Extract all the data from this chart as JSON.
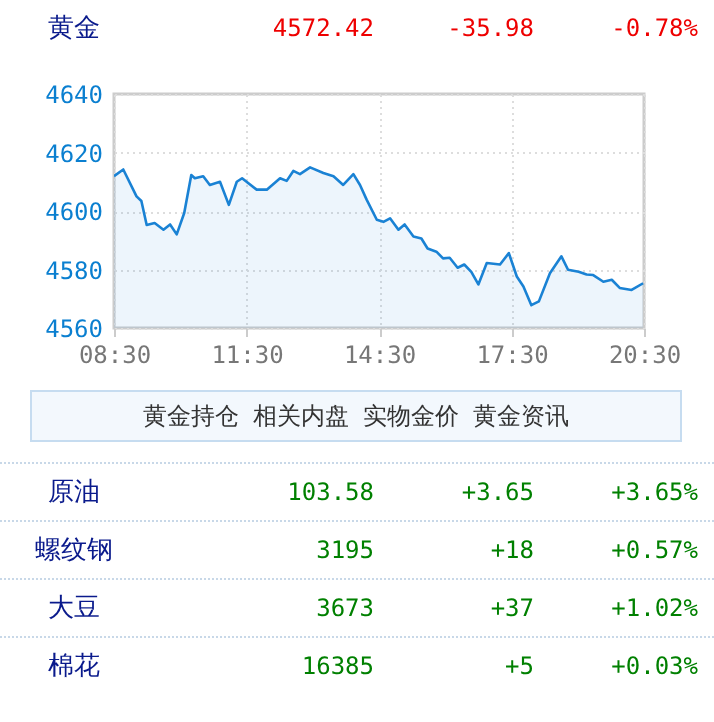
{
  "chart_data": [
    {
      "type": "other",
      "annotations": [
        "黄金",
        "4572.42",
        "-35.98",
        "-0.78%"
      ]
    },
    {
      "type": "area",
      "xlim": [
        8.5,
        20.5
      ],
      "ylim": [
        4560,
        4640
      ],
      "grid": true,
      "xticks": [
        {
          "value": 8.5,
          "label": "08:30"
        },
        {
          "value": 11.5,
          "label": "11:30"
        },
        {
          "value": 14.5,
          "label": "14:30"
        },
        {
          "value": 17.5,
          "label": "17:30"
        },
        {
          "value": 20.5,
          "label": "20:30"
        }
      ],
      "yticks": [
        4560,
        4580,
        4600,
        4620,
        4640
      ],
      "series": [
        {
          "color": "#1a82d4",
          "x": [
            8.5,
            8.71,
            9.01,
            9.12,
            9.24,
            9.42,
            9.62,
            9.77,
            9.92,
            10.09,
            10.25,
            10.33,
            10.52,
            10.67,
            10.9,
            11.1,
            11.28,
            11.4,
            11.73,
            11.96,
            12.26,
            12.41,
            12.56,
            12.71,
            12.94,
            13.24,
            13.47,
            13.69,
            13.92,
            14.07,
            14.22,
            14.45,
            14.6,
            14.75,
            14.94,
            15.08,
            15.28,
            15.46,
            15.6,
            15.8,
            15.95,
            16.1,
            16.28,
            16.43,
            16.59,
            16.75,
            16.94,
            17.24,
            17.44,
            17.62,
            17.77,
            17.95,
            18.12,
            18.37,
            18.63,
            18.78,
            19.02,
            19.2,
            19.35,
            19.58,
            19.77,
            19.95,
            20.22,
            20.48
          ],
          "values": [
            4611.9,
            4614.2,
            4605,
            4603.4,
            4595.2,
            4595.9,
            4593.6,
            4595.4,
            4592,
            4599.3,
            4612.3,
            4611.2,
            4611.9,
            4608.9,
            4610,
            4602.1,
            4610,
            4611.2,
            4607.3,
            4607.3,
            4611.2,
            4610.3,
            4613.7,
            4612.6,
            4614.9,
            4613,
            4611.9,
            4608.9,
            4612.6,
            4608.9,
            4603.9,
            4597,
            4596.3,
            4597.5,
            4593.6,
            4595.4,
            4591.3,
            4590.6,
            4587.2,
            4586.1,
            4583.8,
            4584,
            4580.6,
            4581.7,
            4579.2,
            4574.9,
            4582.2,
            4581.7,
            4585.6,
            4577.6,
            4574.2,
            4567.8,
            4569.1,
            4578.7,
            4584.5,
            4579.9,
            4579.2,
            4578.3,
            4578.1,
            4575.8,
            4576.5,
            4573.7,
            4573,
            4575.3
          ]
        }
      ]
    },
    {
      "type": "other",
      "annotations": [
        "黄金持仓",
        "相关内盘",
        "实物金价",
        "黄金资讯"
      ]
    },
    {
      "type": "other",
      "annotations": [
        "原油",
        "103.58",
        "+3.65",
        "+3.65%",
        "螺纹钢",
        "3195",
        "+18",
        "+0.57%",
        "大豆",
        "3673",
        "+37",
        "+1.02%",
        "棉花",
        "16385",
        "+5",
        "+0.03%"
      ]
    }
  ]
}
